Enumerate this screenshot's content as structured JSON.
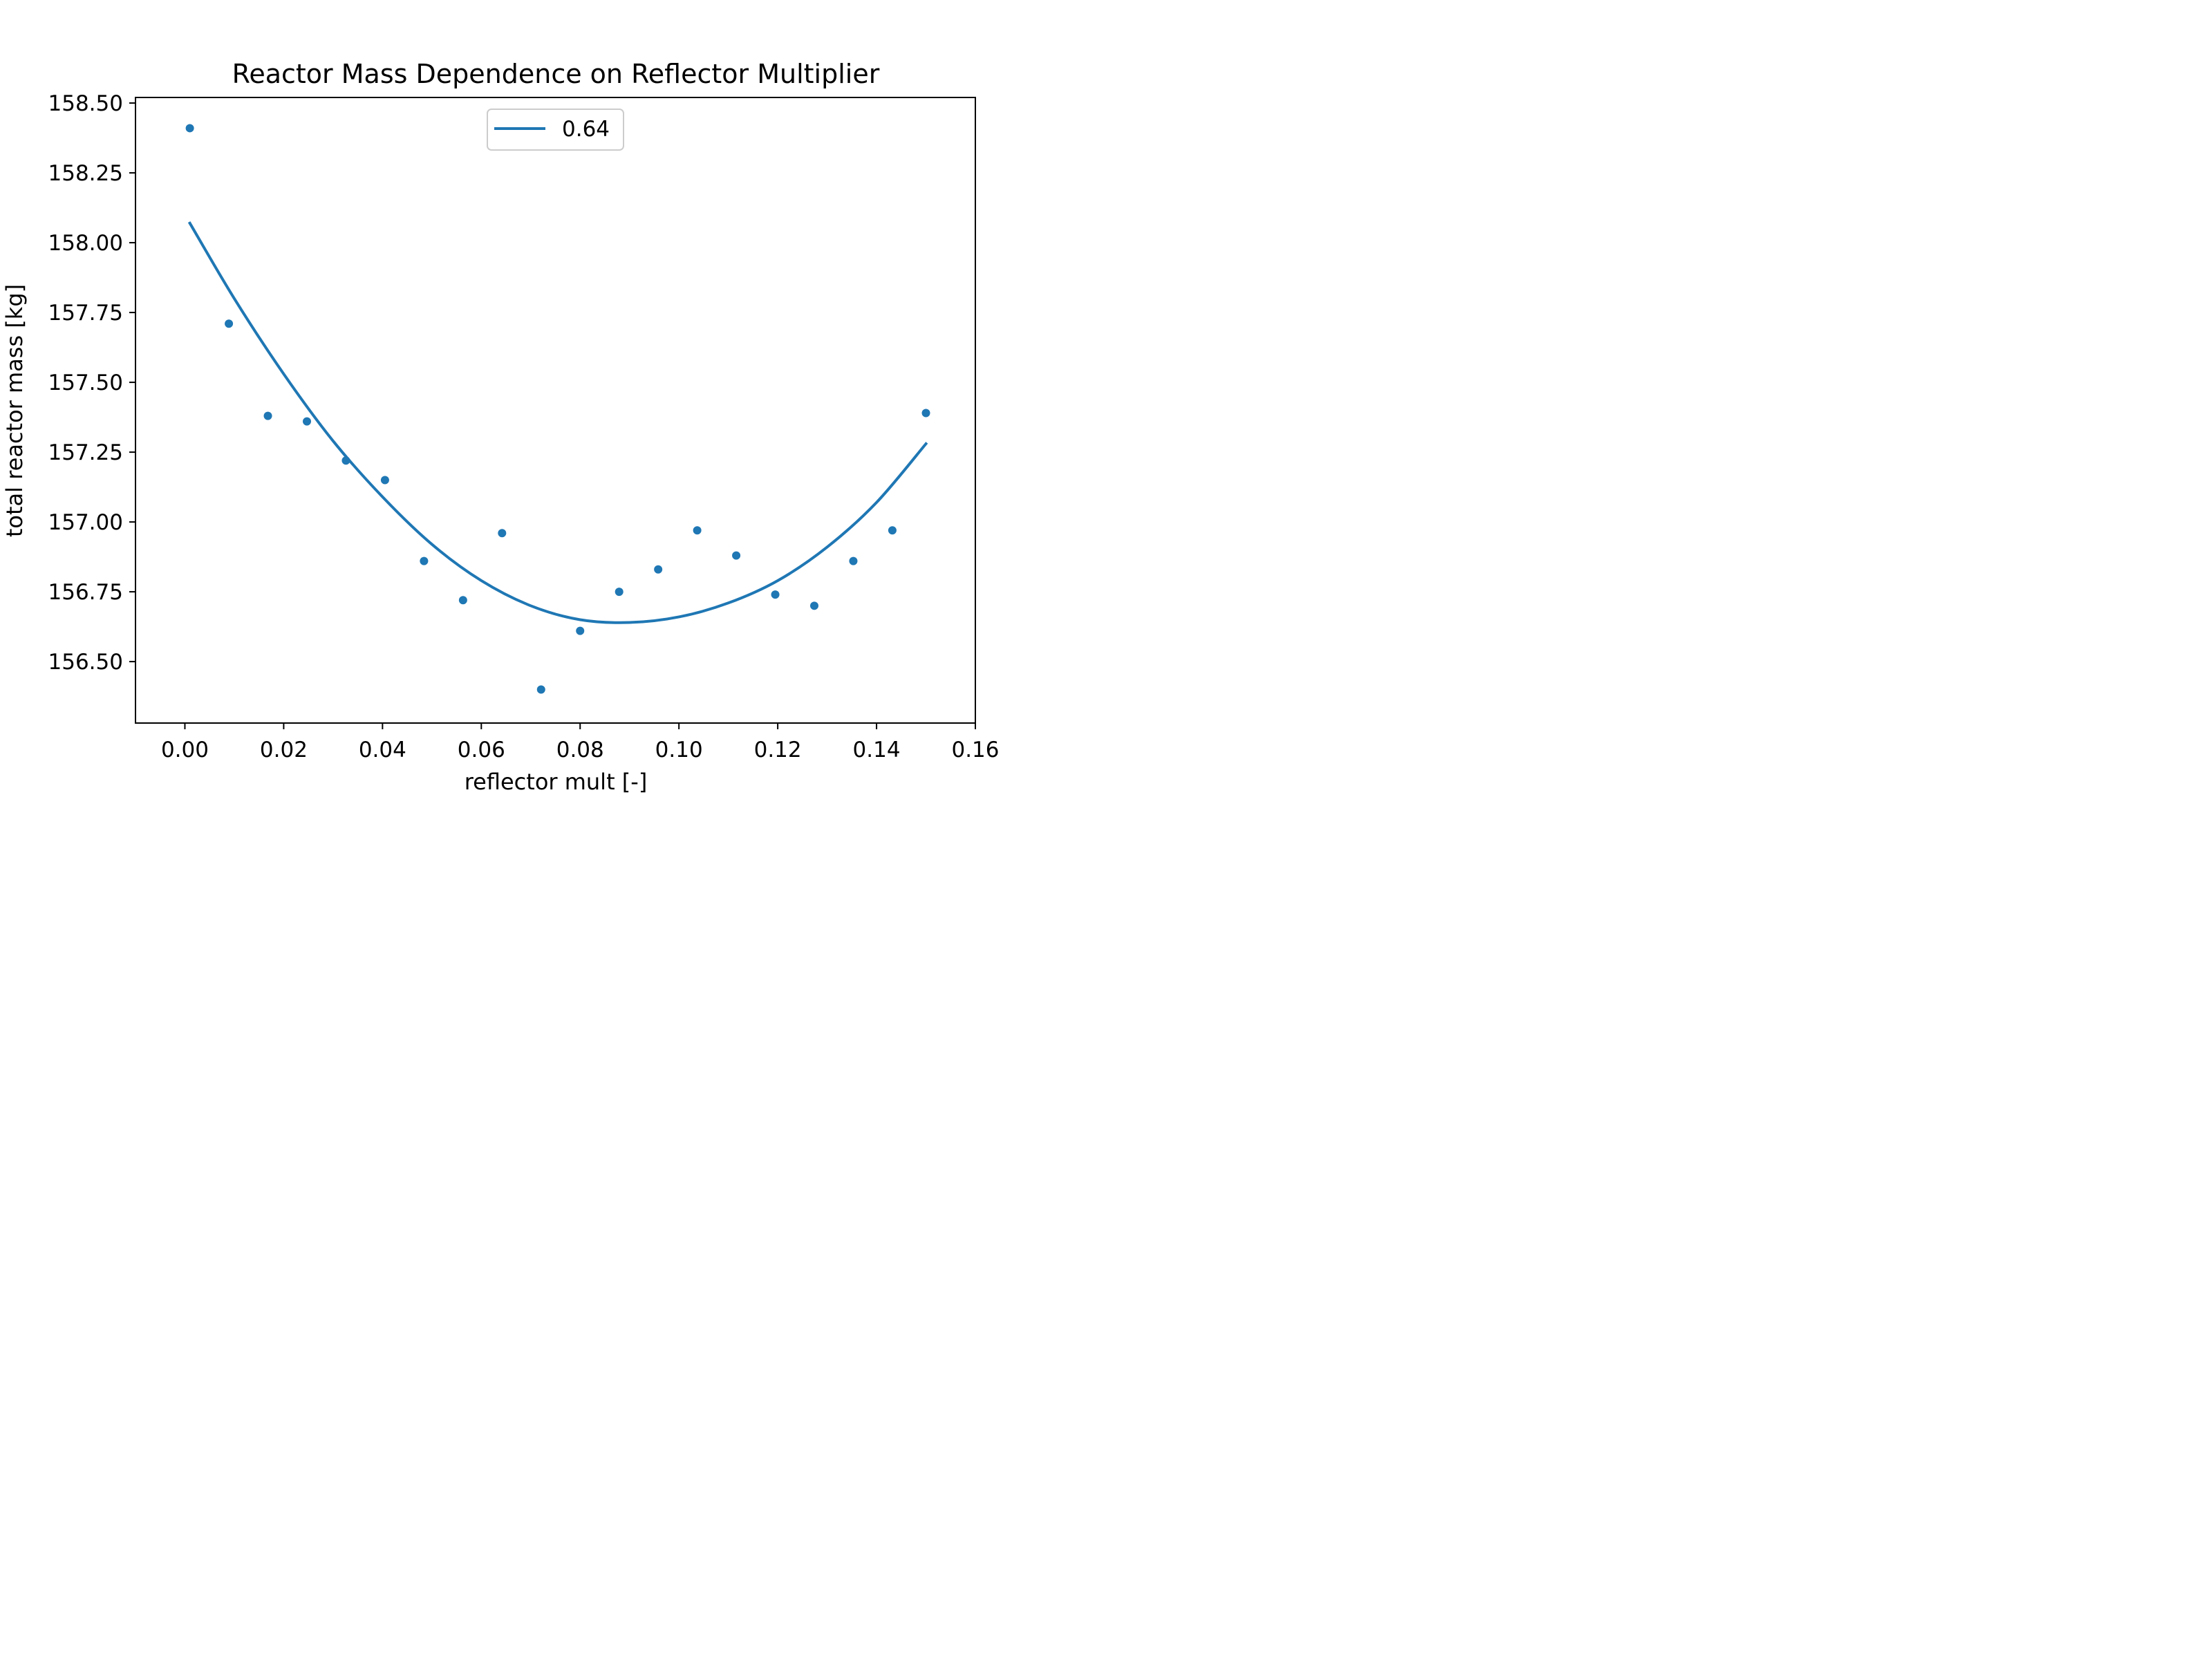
{
  "chart_data": {
    "type": "scatter",
    "title": "Reactor Mass Dependence on Reflector Multiplier",
    "xlabel": "reflector mult [-]",
    "ylabel": "total reactor mass [kg]",
    "xlim": [
      -0.01,
      0.16
    ],
    "ylim": [
      156.28,
      158.52
    ],
    "xticks": [
      "0.00",
      "0.02",
      "0.04",
      "0.06",
      "0.08",
      "0.10",
      "0.12",
      "0.14",
      "0.16"
    ],
    "yticks": [
      "156.50",
      "156.75",
      "157.00",
      "157.25",
      "157.50",
      "157.75",
      "158.00",
      "158.25",
      "158.50"
    ],
    "grid": false,
    "legend_position": "top-center",
    "series_color": "#1f77b4",
    "points": {
      "x": [
        0.001,
        0.0089,
        0.0168,
        0.0247,
        0.0326,
        0.0405,
        0.0484,
        0.0563,
        0.0642,
        0.0721,
        0.08,
        0.0879,
        0.0958,
        0.1037,
        0.1116,
        0.1195,
        0.1274,
        0.1353,
        0.1432,
        0.15
      ],
      "y": [
        158.41,
        157.71,
        157.38,
        157.36,
        157.22,
        157.15,
        156.86,
        156.72,
        156.96,
        156.4,
        156.61,
        156.75,
        156.83,
        156.97,
        156.88,
        156.74,
        156.7,
        156.86,
        156.97,
        157.39
      ]
    },
    "fit": {
      "name": "0.64",
      "x": [
        0.001,
        0.01,
        0.02,
        0.03,
        0.04,
        0.05,
        0.06,
        0.07,
        0.08,
        0.09,
        0.1,
        0.11,
        0.12,
        0.13,
        0.14,
        0.15
      ],
      "y": [
        158.07,
        157.8,
        157.53,
        157.29,
        157.09,
        156.92,
        156.79,
        156.7,
        156.65,
        156.64,
        156.66,
        156.71,
        156.79,
        156.91,
        157.07,
        157.28
      ]
    }
  }
}
